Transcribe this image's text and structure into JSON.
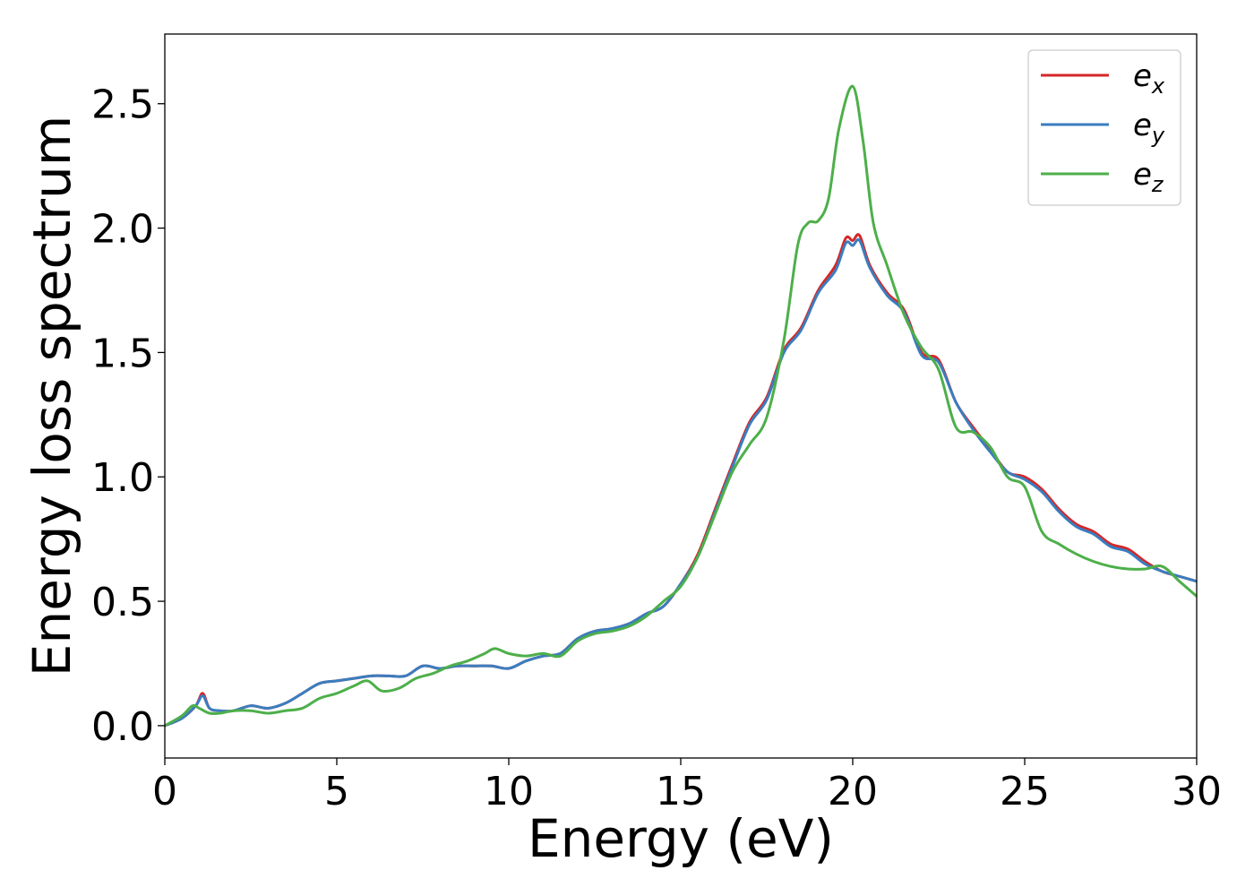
{
  "chart_data": {
    "type": "line",
    "title": "",
    "xlabel": "Energy (eV)",
    "ylabel": "Energy loss spectrum",
    "xlim": [
      0,
      30
    ],
    "ylim": [
      -0.13,
      2.78
    ],
    "xticks": [
      0,
      5,
      10,
      15,
      20,
      25,
      30
    ],
    "yticks": [
      0.0,
      0.5,
      1.0,
      1.5,
      2.0,
      2.5
    ],
    "xtick_labels": [
      "0",
      "5",
      "10",
      "15",
      "20",
      "25",
      "30"
    ],
    "ytick_labels": [
      "0.0",
      "0.5",
      "1.0",
      "1.5",
      "2.0",
      "2.5"
    ],
    "grid": false,
    "legend_position": "top-right",
    "series": [
      {
        "name": "e_x",
        "label_base": "e",
        "label_sub": "x",
        "color": "#d62728",
        "x": [
          0,
          0.5,
          0.9,
          1.1,
          1.3,
          1.6,
          2.0,
          2.5,
          3.0,
          3.5,
          4.0,
          4.5,
          5.0,
          5.5,
          6.0,
          6.5,
          7.0,
          7.5,
          8.0,
          8.5,
          9.0,
          9.5,
          10.0,
          10.5,
          11.0,
          11.5,
          12.0,
          12.5,
          13.0,
          13.5,
          14.0,
          14.5,
          15.0,
          15.5,
          16.0,
          16.5,
          17.0,
          17.5,
          18.0,
          18.5,
          19.0,
          19.5,
          19.8,
          20.0,
          20.2,
          20.5,
          21.0,
          21.5,
          22.0,
          22.5,
          23.0,
          23.5,
          24.0,
          24.5,
          25.0,
          25.5,
          26.0,
          26.5,
          27.0,
          27.5,
          28.0,
          28.5,
          29.0,
          29.5,
          30.0
        ],
        "y": [
          0.0,
          0.03,
          0.08,
          0.13,
          0.07,
          0.06,
          0.06,
          0.08,
          0.07,
          0.09,
          0.13,
          0.17,
          0.18,
          0.19,
          0.2,
          0.2,
          0.2,
          0.24,
          0.23,
          0.24,
          0.24,
          0.24,
          0.23,
          0.26,
          0.28,
          0.29,
          0.35,
          0.38,
          0.39,
          0.41,
          0.45,
          0.48,
          0.57,
          0.69,
          0.87,
          1.05,
          1.22,
          1.32,
          1.51,
          1.6,
          1.75,
          1.85,
          1.96,
          1.95,
          1.97,
          1.85,
          1.74,
          1.67,
          1.5,
          1.47,
          1.3,
          1.2,
          1.11,
          1.02,
          1.0,
          0.95,
          0.87,
          0.81,
          0.78,
          0.73,
          0.71,
          0.66,
          0.62,
          0.6,
          0.58
        ]
      },
      {
        "name": "e_y",
        "label_base": "e",
        "label_sub": "y",
        "color": "#3a7dbf",
        "x": [
          0,
          0.5,
          0.9,
          1.1,
          1.3,
          1.6,
          2.0,
          2.5,
          3.0,
          3.5,
          4.0,
          4.5,
          5.0,
          5.5,
          6.0,
          6.5,
          7.0,
          7.5,
          8.0,
          8.5,
          9.0,
          9.5,
          10.0,
          10.5,
          11.0,
          11.5,
          12.0,
          12.5,
          13.0,
          13.5,
          14.0,
          14.5,
          15.0,
          15.5,
          16.0,
          16.5,
          17.0,
          17.5,
          18.0,
          18.5,
          19.0,
          19.5,
          19.8,
          20.0,
          20.2,
          20.5,
          21.0,
          21.5,
          22.0,
          22.5,
          23.0,
          23.5,
          24.0,
          24.5,
          25.0,
          25.5,
          26.0,
          26.5,
          27.0,
          27.5,
          28.0,
          28.5,
          29.0,
          29.5,
          30.0
        ],
        "y": [
          0.0,
          0.03,
          0.08,
          0.12,
          0.07,
          0.06,
          0.06,
          0.08,
          0.07,
          0.09,
          0.13,
          0.17,
          0.18,
          0.19,
          0.2,
          0.2,
          0.2,
          0.24,
          0.23,
          0.24,
          0.24,
          0.24,
          0.23,
          0.26,
          0.28,
          0.29,
          0.35,
          0.38,
          0.39,
          0.41,
          0.45,
          0.48,
          0.57,
          0.68,
          0.86,
          1.04,
          1.21,
          1.31,
          1.5,
          1.59,
          1.74,
          1.83,
          1.94,
          1.93,
          1.95,
          1.84,
          1.73,
          1.66,
          1.49,
          1.46,
          1.3,
          1.19,
          1.1,
          1.02,
          0.99,
          0.94,
          0.86,
          0.8,
          0.77,
          0.72,
          0.7,
          0.65,
          0.62,
          0.6,
          0.58
        ]
      },
      {
        "name": "e_z",
        "label_base": "e",
        "label_sub": "z",
        "color": "#4daf4a",
        "x": [
          0,
          0.5,
          0.8,
          1.0,
          1.3,
          1.6,
          2.0,
          2.5,
          3.0,
          3.5,
          4.0,
          4.5,
          5.0,
          5.5,
          5.9,
          6.3,
          6.8,
          7.3,
          7.8,
          8.3,
          8.8,
          9.3,
          9.6,
          10.0,
          10.5,
          11.0,
          11.5,
          12.0,
          12.5,
          13.0,
          13.5,
          14.0,
          14.5,
          15.0,
          15.5,
          16.0,
          16.5,
          17.0,
          17.5,
          18.0,
          18.4,
          18.7,
          19.0,
          19.3,
          19.6,
          20.0,
          20.3,
          20.6,
          21.0,
          21.5,
          22.0,
          22.5,
          23.0,
          23.5,
          24.0,
          24.5,
          25.0,
          25.5,
          26.0,
          26.5,
          27.0,
          27.5,
          28.0,
          28.5,
          29.0,
          29.5,
          30.0
        ],
        "y": [
          0.0,
          0.04,
          0.08,
          0.07,
          0.05,
          0.05,
          0.06,
          0.06,
          0.05,
          0.06,
          0.07,
          0.11,
          0.13,
          0.16,
          0.18,
          0.14,
          0.15,
          0.19,
          0.21,
          0.24,
          0.26,
          0.29,
          0.31,
          0.29,
          0.28,
          0.29,
          0.28,
          0.34,
          0.37,
          0.38,
          0.4,
          0.44,
          0.5,
          0.56,
          0.68,
          0.85,
          1.02,
          1.13,
          1.24,
          1.55,
          1.93,
          2.02,
          2.03,
          2.12,
          2.4,
          2.57,
          2.35,
          2.02,
          1.85,
          1.65,
          1.52,
          1.43,
          1.2,
          1.18,
          1.12,
          1.0,
          0.96,
          0.78,
          0.73,
          0.69,
          0.66,
          0.64,
          0.63,
          0.63,
          0.64,
          0.58,
          0.52
        ]
      }
    ]
  }
}
